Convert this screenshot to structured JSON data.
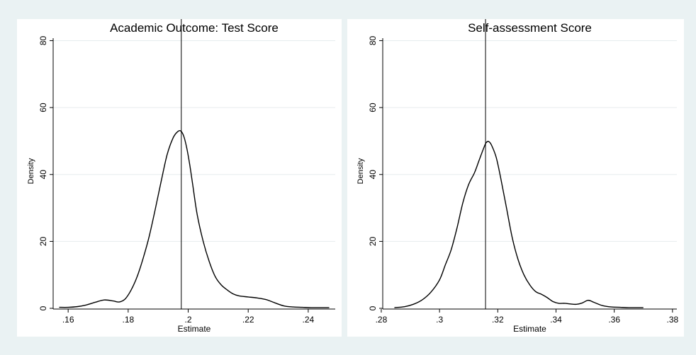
{
  "colors": {
    "figure_bg": "#eaf2f3",
    "plot_bg": "#ffffff",
    "gridline": "#e6ecee",
    "line": "#000000"
  },
  "chart_data": [
    {
      "type": "line",
      "title": "Academic Outcome: Test Score",
      "xlabel": "Estimate",
      "ylabel": "Density",
      "xlim": [
        0.155,
        0.249
      ],
      "ylim": [
        0,
        82
      ],
      "xticks": [
        0.16,
        0.18,
        0.2,
        0.22,
        0.24
      ],
      "xtick_labels": [
        ".16",
        ".18",
        ".2",
        ".22",
        ".24"
      ],
      "yticks": [
        0,
        20,
        40,
        60,
        80
      ],
      "ytick_labels": [
        "0",
        "20",
        "40",
        "60",
        "80"
      ],
      "grid": true,
      "reference_line_x": 0.1977,
      "x": [
        0.157,
        0.16,
        0.163,
        0.166,
        0.169,
        0.172,
        0.175,
        0.177,
        0.179,
        0.181,
        0.183,
        0.185,
        0.187,
        0.189,
        0.191,
        0.193,
        0.195,
        0.1965,
        0.1975,
        0.1985,
        0.1995,
        0.2005,
        0.2015,
        0.203,
        0.205,
        0.207,
        0.209,
        0.211,
        0.213,
        0.215,
        0.217,
        0.22,
        0.223,
        0.226,
        0.229,
        0.232,
        0.235,
        0.238,
        0.241,
        0.244,
        0.247
      ],
      "y": [
        0.3,
        0.3,
        0.5,
        1.0,
        1.8,
        2.5,
        2.2,
        1.9,
        2.8,
        5.5,
        9.5,
        15.0,
        21.5,
        29.5,
        38.0,
        46.0,
        51.0,
        52.8,
        53.0,
        51.5,
        48.0,
        43.0,
        37.0,
        28.0,
        20.0,
        14.0,
        9.5,
        7.0,
        5.5,
        4.3,
        3.7,
        3.4,
        3.1,
        2.6,
        1.6,
        0.7,
        0.4,
        0.3,
        0.2,
        0.2,
        0.2
      ]
    },
    {
      "type": "line",
      "title": "Self-assessment Score",
      "xlabel": "Estimate",
      "ylabel": "Density",
      "xlim": [
        0.2805,
        0.3815
      ],
      "ylim": [
        0,
        82
      ],
      "xticks": [
        0.28,
        0.3,
        0.32,
        0.34,
        0.36,
        0.38
      ],
      "xtick_labels": [
        ".28",
        ".3",
        ".32",
        ".34",
        ".36",
        ".38"
      ],
      "yticks": [
        0,
        20,
        40,
        60,
        80
      ],
      "ytick_labels": [
        "0",
        "20",
        "40",
        "60",
        "80"
      ],
      "grid": true,
      "reference_line_x": 0.3158,
      "x": [
        0.2845,
        0.288,
        0.291,
        0.294,
        0.297,
        0.3,
        0.302,
        0.304,
        0.306,
        0.308,
        0.31,
        0.312,
        0.3135,
        0.315,
        0.316,
        0.317,
        0.318,
        0.3195,
        0.321,
        0.323,
        0.325,
        0.327,
        0.329,
        0.331,
        0.333,
        0.335,
        0.337,
        0.339,
        0.341,
        0.343,
        0.345,
        0.347,
        0.349,
        0.351,
        0.353,
        0.356,
        0.359,
        0.362,
        0.365,
        0.368,
        0.37
      ],
      "y": [
        0.2,
        0.5,
        1.2,
        2.5,
        4.8,
        8.5,
        13.0,
        17.5,
        24.0,
        31.5,
        37.0,
        40.5,
        44.0,
        47.5,
        49.5,
        49.8,
        48.5,
        45.0,
        39.0,
        30.0,
        21.0,
        14.5,
        10.0,
        7.0,
        5.0,
        4.2,
        3.2,
        2.0,
        1.5,
        1.5,
        1.3,
        1.2,
        1.6,
        2.4,
        1.8,
        0.8,
        0.4,
        0.3,
        0.2,
        0.2,
        0.2
      ]
    }
  ]
}
